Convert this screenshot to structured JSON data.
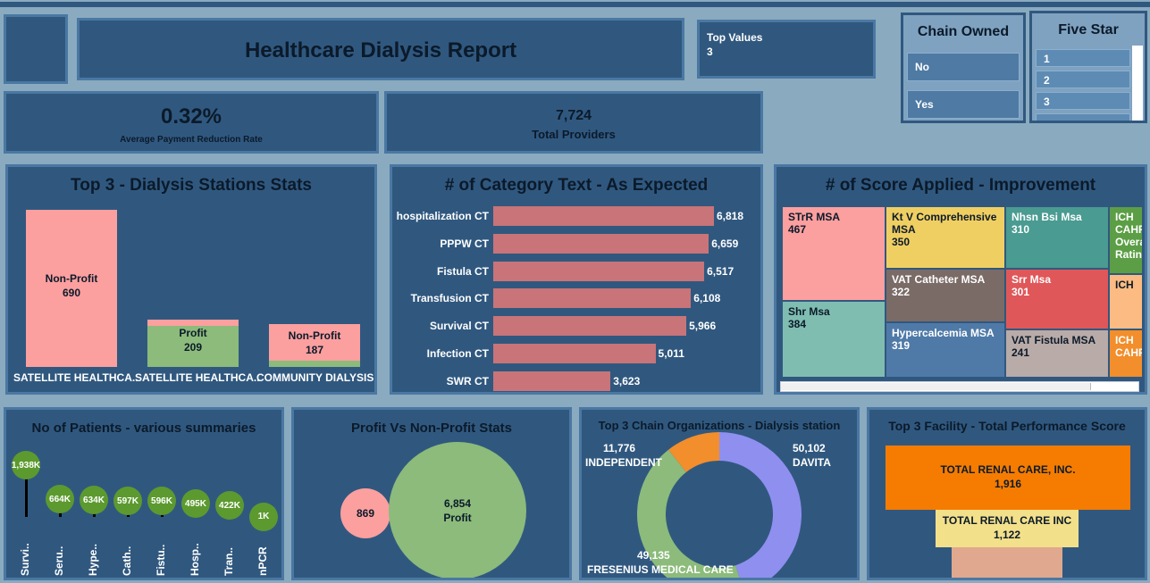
{
  "header": {
    "title": "Healthcare Dialysis Report",
    "top_values_label": "Top Values",
    "top_values_value": "3"
  },
  "filters": {
    "chain_owned": {
      "title": "Chain Owned",
      "options": [
        "No",
        "Yes"
      ]
    },
    "five_star": {
      "title": "Five Star",
      "options": [
        "1",
        "2",
        "3"
      ]
    }
  },
  "kpis": {
    "payment_reduction": {
      "value": "0.32%",
      "label": "Average Payment Reduction Rate"
    },
    "total_providers": {
      "value": "7,724",
      "label": "Total Providers"
    }
  },
  "stations": {
    "title": "Top 3 - Dialysis Stations Stats",
    "chart_data": {
      "type": "bar",
      "categories": [
        "SATELLITE HEALTHCA..",
        "SATELLITE HEALTHCA..",
        "COMMUNITY DIALYSIS.."
      ],
      "series_labels": [
        "Non-Profit",
        "Profit",
        "Non-Profit"
      ],
      "values": [
        690,
        209,
        187
      ]
    },
    "colors": {
      "nonprofit": "#fc9f9f",
      "profit": "#8cbb7b"
    }
  },
  "category_text": {
    "title": "# of Category Text - As Expected",
    "chart_data": {
      "type": "bar",
      "categories": [
        "hospitalization CT",
        "PPPW CT",
        "Fistula CT",
        "Transfusion CT",
        "Survival CT",
        "Infection CT",
        "SWR CT"
      ],
      "values": [
        6818,
        6659,
        6517,
        6108,
        5966,
        5011,
        3623
      ],
      "value_labels": [
        "6,818",
        "6,659",
        "6,517",
        "6,108",
        "5,966",
        "5,011",
        "3,623"
      ]
    }
  },
  "score_applied": {
    "title": "# of Score Applied - Improvement",
    "chart_data": {
      "type": "treemap",
      "items": [
        {
          "name": "STrR MSA",
          "value": 467,
          "color": "#fc9f9f"
        },
        {
          "name": "Shr Msa",
          "value": 384,
          "color": "#7fbdb1"
        },
        {
          "name": "Kt V Comprehensive MSA",
          "value": 350,
          "color": "#f0cf62"
        },
        {
          "name": "VAT Catheter MSA",
          "value": 322,
          "color": "#7a6b67"
        },
        {
          "name": "Hypercalcemia MSA",
          "value": 319,
          "color": "#4f7aa8"
        },
        {
          "name": "Nhsn Bsi Msa",
          "value": 310,
          "color": "#4a9b91"
        },
        {
          "name": "Srr Msa",
          "value": 301,
          "color": "#e05759"
        },
        {
          "name": "VAT Fistula MSA",
          "value": 241,
          "color": "#b9aba7"
        },
        {
          "name": "ICH CAHPS Overa Ratin",
          "value": null,
          "color": "#5b9e45"
        },
        {
          "name": "ICH",
          "value": null,
          "color": "#fcbb82"
        },
        {
          "name": "ICH CAHP",
          "value": null,
          "color": "#f28e2b"
        }
      ]
    }
  },
  "patients": {
    "title": "No of Patients - various summaries",
    "chart_data": {
      "type": "lollipop",
      "categories": [
        "Survi..",
        "Seru..",
        "Hype..",
        "Cath..",
        "Fistu..",
        "Hosp..",
        "Tran..",
        "nPCR"
      ],
      "value_labels": [
        "1,938K",
        "664K",
        "634K",
        "597K",
        "596K",
        "495K",
        "422K",
        "1K"
      ],
      "values": [
        1938,
        664,
        634,
        597,
        596,
        495,
        422,
        1
      ]
    }
  },
  "profit_vs": {
    "title": "Profit Vs Non-Profit Stats",
    "chart_data": {
      "type": "bubble",
      "items": [
        {
          "label": "",
          "value": 869,
          "value_label": "869",
          "color": "#fc9f9f"
        },
        {
          "label": "Profit",
          "value": 6854,
          "value_label": "6,854",
          "color": "#8cbb7b"
        }
      ]
    }
  },
  "chains": {
    "title": "Top 3 Chain Organizations - Dialysis station",
    "chart_data": {
      "type": "pie",
      "items": [
        {
          "label": "DAVITA",
          "value": 50102,
          "value_label": "50,102",
          "color": "#8f8ff0"
        },
        {
          "label": "FRESENIUS MEDICAL CARE",
          "value": 49135,
          "value_label": "49,135",
          "color": "#8cbb7b"
        },
        {
          "label": "INDEPENDENT",
          "value": 11776,
          "value_label": "11,776",
          "color": "#f28e2b"
        }
      ]
    }
  },
  "facility": {
    "title": "Top 3 Facility - Total Performance Score",
    "chart_data": {
      "type": "funnel",
      "items": [
        {
          "label": "TOTAL RENAL CARE, INC.",
          "value": 1916,
          "value_label": "1,916",
          "color": "#f57c00"
        },
        {
          "label": "TOTAL RENAL CARE INC",
          "value": 1122,
          "value_label": "1,122",
          "color": "#f3e08a"
        },
        {
          "label": "",
          "value": null,
          "value_label": "",
          "color": "#e0a88e"
        }
      ]
    }
  }
}
